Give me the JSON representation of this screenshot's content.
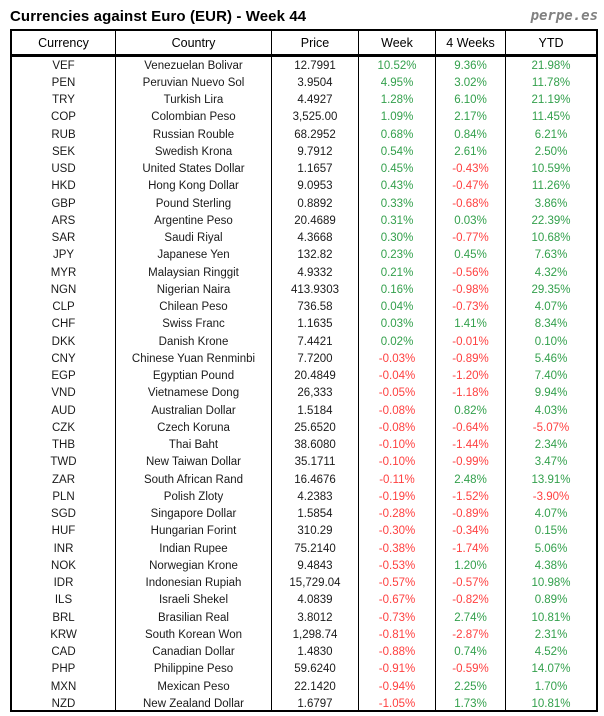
{
  "title": "Currencies against Euro (EUR) - Week 44",
  "brand": "perpe.es",
  "colors": {
    "positive": "#33a04c",
    "negative": "#ff4040",
    "text": "#1a1a1a",
    "brand_gray": "#808080",
    "border": "#000000"
  },
  "chart_data": {
    "type": "table",
    "title": "Currencies against Euro (EUR) - Week 44",
    "columns": [
      "Currency",
      "Country",
      "Price",
      "Week",
      "4 Weeks",
      "YTD"
    ],
    "rows": [
      {
        "code": "VEF",
        "country": "Venezuelan Bolivar",
        "price": "12.7991",
        "week": "10.52%",
        "weeks4": "9.36%",
        "ytd": "21.98%"
      },
      {
        "code": "PEN",
        "country": "Peruvian Nuevo Sol",
        "price": "3.9504",
        "week": "4.95%",
        "weeks4": "3.02%",
        "ytd": "11.78%"
      },
      {
        "code": "TRY",
        "country": "Turkish Lira",
        "price": "4.4927",
        "week": "1.28%",
        "weeks4": "6.10%",
        "ytd": "21.19%"
      },
      {
        "code": "COP",
        "country": "Colombian Peso",
        "price": "3,525.00",
        "week": "1.09%",
        "weeks4": "2.17%",
        "ytd": "11.45%"
      },
      {
        "code": "RUB",
        "country": "Russian Rouble",
        "price": "68.2952",
        "week": "0.68%",
        "weeks4": "0.84%",
        "ytd": "6.21%"
      },
      {
        "code": "SEK",
        "country": "Swedish Krona",
        "price": "9.7912",
        "week": "0.54%",
        "weeks4": "2.61%",
        "ytd": "2.50%"
      },
      {
        "code": "USD",
        "country": "United States Dollar",
        "price": "1.1657",
        "week": "0.45%",
        "weeks4": "-0.43%",
        "ytd": "10.59%"
      },
      {
        "code": "HKD",
        "country": "Hong Kong Dollar",
        "price": "9.0953",
        "week": "0.43%",
        "weeks4": "-0.47%",
        "ytd": "11.26%"
      },
      {
        "code": "GBP",
        "country": "Pound Sterling",
        "price": "0.8892",
        "week": "0.33%",
        "weeks4": "-0.68%",
        "ytd": "3.86%"
      },
      {
        "code": "ARS",
        "country": "Argentine Peso",
        "price": "20.4689",
        "week": "0.31%",
        "weeks4": "0.03%",
        "ytd": "22.39%"
      },
      {
        "code": "SAR",
        "country": "Saudi Riyal",
        "price": "4.3668",
        "week": "0.30%",
        "weeks4": "-0.77%",
        "ytd": "10.68%"
      },
      {
        "code": "JPY",
        "country": "Japanese Yen",
        "price": "132.82",
        "week": "0.23%",
        "weeks4": "0.45%",
        "ytd": "7.63%"
      },
      {
        "code": "MYR",
        "country": "Malaysian Ringgit",
        "price": "4.9332",
        "week": "0.21%",
        "weeks4": "-0.56%",
        "ytd": "4.32%"
      },
      {
        "code": "NGN",
        "country": "Nigerian Naira",
        "price": "413.9303",
        "week": "0.16%",
        "weeks4": "-0.98%",
        "ytd": "29.35%"
      },
      {
        "code": "CLP",
        "country": "Chilean Peso",
        "price": "736.58",
        "week": "0.04%",
        "weeks4": "-0.73%",
        "ytd": "4.07%"
      },
      {
        "code": "CHF",
        "country": "Swiss Franc",
        "price": "1.1635",
        "week": "0.03%",
        "weeks4": "1.41%",
        "ytd": "8.34%"
      },
      {
        "code": "DKK",
        "country": "Danish Krone",
        "price": "7.4421",
        "week": "0.02%",
        "weeks4": "-0.01%",
        "ytd": "0.10%"
      },
      {
        "code": "CNY",
        "country": "Chinese Yuan Renminbi",
        "price": "7.7200",
        "week": "-0.03%",
        "weeks4": "-0.89%",
        "ytd": "5.46%"
      },
      {
        "code": "EGP",
        "country": "Egyptian Pound",
        "price": "20.4849",
        "week": "-0.04%",
        "weeks4": "-1.20%",
        "ytd": "7.40%"
      },
      {
        "code": "VND",
        "country": "Vietnamese Dong",
        "price": "26,333",
        "week": "-0.05%",
        "weeks4": "-1.18%",
        "ytd": "9.94%"
      },
      {
        "code": "AUD",
        "country": "Australian Dollar",
        "price": "1.5184",
        "week": "-0.08%",
        "weeks4": "0.82%",
        "ytd": "4.03%"
      },
      {
        "code": "CZK",
        "country": "Czech Koruna",
        "price": "25.6520",
        "week": "-0.08%",
        "weeks4": "-0.64%",
        "ytd": "-5.07%"
      },
      {
        "code": "THB",
        "country": "Thai Baht",
        "price": "38.6080",
        "week": "-0.10%",
        "weeks4": "-1.44%",
        "ytd": "2.34%"
      },
      {
        "code": "TWD",
        "country": "New Taiwan Dollar",
        "price": "35.1711",
        "week": "-0.10%",
        "weeks4": "-0.99%",
        "ytd": "3.47%"
      },
      {
        "code": "ZAR",
        "country": "South African Rand",
        "price": "16.4676",
        "week": "-0.11%",
        "weeks4": "2.48%",
        "ytd": "13.91%"
      },
      {
        "code": "PLN",
        "country": "Polish Zloty",
        "price": "4.2383",
        "week": "-0.19%",
        "weeks4": "-1.52%",
        "ytd": "-3.90%"
      },
      {
        "code": "SGD",
        "country": "Singapore Dollar",
        "price": "1.5854",
        "week": "-0.28%",
        "weeks4": "-0.89%",
        "ytd": "4.07%"
      },
      {
        "code": "HUF",
        "country": "Hungarian Forint",
        "price": "310.29",
        "week": "-0.30%",
        "weeks4": "-0.34%",
        "ytd": "0.15%"
      },
      {
        "code": "INR",
        "country": "Indian Rupee",
        "price": "75.2140",
        "week": "-0.38%",
        "weeks4": "-1.74%",
        "ytd": "5.06%"
      },
      {
        "code": "NOK",
        "country": "Norwegian Krone",
        "price": "9.4843",
        "week": "-0.53%",
        "weeks4": "1.20%",
        "ytd": "4.38%"
      },
      {
        "code": "IDR",
        "country": "Indonesian Rupiah",
        "price": "15,729.04",
        "week": "-0.57%",
        "weeks4": "-0.57%",
        "ytd": "10.98%"
      },
      {
        "code": "ILS",
        "country": "Israeli Shekel",
        "price": "4.0839",
        "week": "-0.67%",
        "weeks4": "-0.82%",
        "ytd": "0.89%"
      },
      {
        "code": "BRL",
        "country": "Brasilian Real",
        "price": "3.8012",
        "week": "-0.73%",
        "weeks4": "2.74%",
        "ytd": "10.81%"
      },
      {
        "code": "KRW",
        "country": "South Korean Won",
        "price": "1,298.74",
        "week": "-0.81%",
        "weeks4": "-2.87%",
        "ytd": "2.31%"
      },
      {
        "code": "CAD",
        "country": "Canadian Dollar",
        "price": "1.4830",
        "week": "-0.88%",
        "weeks4": "0.74%",
        "ytd": "4.52%"
      },
      {
        "code": "PHP",
        "country": "Philippine Peso",
        "price": "59.6240",
        "week": "-0.91%",
        "weeks4": "-0.59%",
        "ytd": "14.07%"
      },
      {
        "code": "MXN",
        "country": "Mexican Peso",
        "price": "22.1420",
        "week": "-0.94%",
        "weeks4": "2.25%",
        "ytd": "1.70%"
      },
      {
        "code": "NZD",
        "country": "New Zealand Dollar",
        "price": "1.6797",
        "week": "-1.05%",
        "weeks4": "1.73%",
        "ytd": "10.81%"
      }
    ]
  }
}
